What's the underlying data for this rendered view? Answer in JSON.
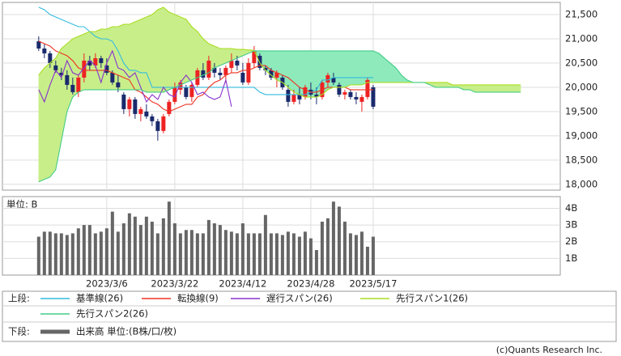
{
  "chart_data": [
    {
      "type": "candlestick",
      "xlim": [
        -6.4,
        92
      ],
      "ylim": [
        17880,
        21750
      ],
      "yticks": [
        {
          "value": 18000,
          "label": "18,000"
        },
        {
          "value": 18500,
          "label": "18,500"
        },
        {
          "value": 19000,
          "label": "19,000"
        },
        {
          "value": 19500,
          "label": "19,500"
        },
        {
          "value": 20000,
          "label": "20,000"
        },
        {
          "value": 20500,
          "label": "20,500"
        },
        {
          "value": 21000,
          "label": "21,000"
        },
        {
          "value": 21500,
          "label": "21,500"
        }
      ],
      "grid": true,
      "up_color": "#ee2222",
      "down_color": "#1a2a6c",
      "cloud_fill": {
        "span1_above": "#c8ee8a",
        "span2_above": "#8eeabb"
      },
      "ohlc": {
        "open": [
          20950,
          20800,
          20700,
          20450,
          20300,
          20250,
          20050,
          19900,
          20200,
          20550,
          20450,
          20600,
          20450,
          20300,
          20100,
          19850,
          19550,
          19750,
          19450,
          19500,
          19400,
          19300,
          19100,
          19450,
          19700,
          19950,
          20000,
          19800,
          20050,
          20350,
          20200,
          20400,
          20300,
          20250,
          20400,
          20550,
          20300,
          20100,
          20500,
          20650,
          20400,
          20350,
          20200,
          20200,
          19950,
          19700,
          19850,
          19800,
          19950,
          19850,
          19800,
          20100,
          20200,
          20050,
          19850,
          19900,
          19800,
          19700,
          19800,
          20000
        ],
        "high": [
          21050,
          20900,
          20750,
          20550,
          20400,
          20350,
          20200,
          20250,
          20700,
          20650,
          20700,
          20650,
          20600,
          20350,
          20250,
          19900,
          19800,
          19800,
          19600,
          19650,
          19450,
          19350,
          19450,
          19750,
          20100,
          20150,
          20050,
          20100,
          20400,
          20500,
          20650,
          20500,
          20400,
          20450,
          20700,
          20650,
          20500,
          20600,
          20850,
          20700,
          20450,
          20400,
          20350,
          20250,
          20050,
          19950,
          20000,
          20050,
          20100,
          20000,
          20150,
          20300,
          20300,
          20100,
          19950,
          19950,
          19900,
          19850,
          20200,
          20050
        ],
        "low": [
          20750,
          20600,
          20400,
          20300,
          20150,
          19950,
          19850,
          19800,
          20100,
          20350,
          20400,
          20400,
          20250,
          20050,
          19900,
          19450,
          19400,
          19350,
          19300,
          19350,
          19200,
          18900,
          19050,
          19400,
          19650,
          19850,
          19750,
          19700,
          20000,
          20150,
          20150,
          20200,
          20150,
          20100,
          20300,
          20350,
          20050,
          20050,
          20400,
          20350,
          20250,
          20150,
          20000,
          19950,
          19600,
          19650,
          19650,
          19750,
          19750,
          19650,
          19750,
          20000,
          20050,
          19800,
          19750,
          19750,
          19650,
          19500,
          19750,
          19550
        ],
        "close": [
          20800,
          20700,
          20500,
          20350,
          20250,
          20050,
          19900,
          20200,
          20550,
          20450,
          20600,
          20500,
          20300,
          20100,
          20000,
          19550,
          19750,
          19450,
          19550,
          19400,
          19300,
          19100,
          19400,
          19700,
          20000,
          20100,
          19800,
          20050,
          20350,
          20200,
          20550,
          20300,
          20250,
          20400,
          20550,
          20450,
          20100,
          20500,
          20750,
          20400,
          20350,
          20200,
          20300,
          20000,
          19700,
          19850,
          19750,
          20000,
          19850,
          19800,
          20100,
          20250,
          20100,
          19850,
          19900,
          19800,
          19750,
          19800,
          20150,
          19600
        ]
      },
      "series": [
        {
          "name": "基準線(26)",
          "color": "#33bbdd",
          "values": [
            21650,
            21600,
            21500,
            21450,
            21400,
            21350,
            21300,
            21250,
            21250,
            21150,
            21050,
            21000,
            21000,
            20950,
            20750,
            20500,
            20350,
            20350,
            20300,
            20300,
            20000,
            20000,
            20000,
            20000,
            20000,
            20000,
            20000,
            20000,
            20000,
            20000,
            20000,
            20000,
            20000,
            20000,
            20000,
            20000,
            20000,
            20000,
            20000,
            19900,
            19850,
            19850,
            19850,
            19850,
            19850,
            19850,
            19850,
            19850,
            19900,
            19950,
            20150,
            20150,
            20200,
            20200,
            20200,
            20200,
            20200,
            20200,
            20200,
            20200
          ]
        },
        {
          "name": "転換線(9)",
          "color": "#ee3322",
          "values": [
            20950,
            20900,
            20850,
            20750,
            20700,
            20650,
            20550,
            20400,
            20350,
            20350,
            20350,
            20350,
            20350,
            20300,
            20250,
            20200,
            20150,
            19950,
            19900,
            19800,
            19700,
            19650,
            19550,
            19500,
            19550,
            19600,
            19650,
            19650,
            19800,
            19850,
            20000,
            20100,
            20150,
            20250,
            20300,
            20300,
            20350,
            20350,
            20400,
            20450,
            20450,
            20350,
            20300,
            20250,
            20200,
            20100,
            20000,
            19950,
            19900,
            19900,
            19950,
            20000,
            20000,
            20000,
            20000,
            19950,
            19950,
            19950,
            19950,
            19950
          ]
        },
        {
          "name": "遅行スパン(26)",
          "color": "#8833cc",
          "values": [
            19950,
            19700,
            20050,
            20350,
            20200,
            20550,
            20300,
            20250,
            20400,
            20550,
            20450,
            20100,
            20500,
            20750,
            20400,
            20350,
            20200,
            20300,
            20000,
            19700,
            19850,
            19750,
            20000,
            19850,
            19800,
            20100,
            20250,
            20100,
            19850,
            19900,
            19800,
            19750,
            19800,
            20150,
            19600
          ]
        },
        {
          "name": "先行スパン1(26)",
          "color": "#aadd22",
          "values": [
            20250,
            20400,
            20500,
            20600,
            20800,
            20900,
            21000,
            21050,
            21100,
            21150,
            21150,
            21200,
            21200,
            21250,
            21250,
            21300,
            21300,
            21350,
            21400,
            21450,
            21500,
            21600,
            21650,
            21550,
            21500,
            21450,
            21400,
            21250,
            21150,
            21000,
            20900,
            20850,
            20800,
            20800,
            20800,
            20780,
            20780,
            20770,
            20760,
            20500,
            20350,
            20250,
            20150,
            20100,
            20000,
            19900,
            19850,
            19800,
            19800,
            19800,
            19850,
            19950,
            20000,
            20000,
            20000,
            20050,
            20050,
            20050,
            20100,
            20100,
            20100,
            20100,
            20100,
            20100,
            20100,
            20100,
            20100,
            20100,
            20100,
            20100,
            20100,
            20100,
            20100,
            20050,
            20050,
            20050,
            20050,
            20050,
            20050,
            20050,
            20050,
            20050,
            20050,
            20050,
            20050,
            20050
          ]
        },
        {
          "name": "先行スパン2(26)",
          "color": "#44cc88",
          "values": [
            18050,
            18100,
            18150,
            18300,
            18900,
            19500,
            19800,
            19900,
            19950,
            19950,
            19950,
            19950,
            19950,
            19950,
            19950,
            19950,
            19950,
            19950,
            19950,
            19900,
            19900,
            19900,
            19900,
            19950,
            20000,
            20050,
            20100,
            20150,
            20200,
            20250,
            20300,
            20400,
            20450,
            20500,
            20550,
            20600,
            20650,
            20700,
            20750,
            20750,
            20750,
            20750,
            20750,
            20750,
            20750,
            20750,
            20750,
            20750,
            20750,
            20750,
            20750,
            20750,
            20750,
            20750,
            20750,
            20750,
            20750,
            20750,
            20750,
            20750,
            20700,
            20600,
            20500,
            20400,
            20250,
            20150,
            20100,
            20100,
            20100,
            20050,
            20000,
            20000,
            20000,
            20000,
            20000,
            19950,
            19950,
            19900,
            19900,
            19900,
            19900,
            19900,
            19900,
            19900,
            19900,
            19900
          ]
        }
      ]
    },
    {
      "type": "bar",
      "unit_label": "単位: B",
      "xlim": [
        -6.4,
        92
      ],
      "ylim": [
        0,
        4.7
      ],
      "xticks": [
        {
          "value": 12,
          "label": "2023/3/6"
        },
        {
          "value": 24,
          "label": "2023/3/22"
        },
        {
          "value": 36,
          "label": "2023/4/12"
        },
        {
          "value": 48,
          "label": "2023/4/28"
        },
        {
          "value": 59,
          "label": "2023/5/17"
        }
      ],
      "yticks": [
        {
          "value": 1,
          "label": "1B"
        },
        {
          "value": 2,
          "label": "2B"
        },
        {
          "value": 3,
          "label": "3B"
        },
        {
          "value": 4,
          "label": "4B"
        }
      ],
      "grid": true,
      "series": [
        {
          "name": "出来高 単位:(B株/口/枚)",
          "color": "#666666",
          "values": [
            2.3,
            2.6,
            2.6,
            2.5,
            2.5,
            2.4,
            2.5,
            2.8,
            3.0,
            3.0,
            2.5,
            2.6,
            2.8,
            3.8,
            2.6,
            3.1,
            3.7,
            3.5,
            3.0,
            3.5,
            3.2,
            2.5,
            3.4,
            4.4,
            3.1,
            2.5,
            2.7,
            2.7,
            2.5,
            2.5,
            3.3,
            3.1,
            3.0,
            2.7,
            2.6,
            2.5,
            3.1,
            2.5,
            2.5,
            2.5,
            3.6,
            2.5,
            2.5,
            2.4,
            2.6,
            2.5,
            2.3,
            2.6,
            2.2,
            1.5,
            3.2,
            3.4,
            4.4,
            4.1,
            3.2,
            2.5,
            2.4,
            2.6,
            1.7,
            2.3
          ]
        }
      ]
    }
  ],
  "legend": {
    "upper_label": "上段:",
    "lower_label": "下段:"
  },
  "footer": "(c)Quants Research Inc."
}
